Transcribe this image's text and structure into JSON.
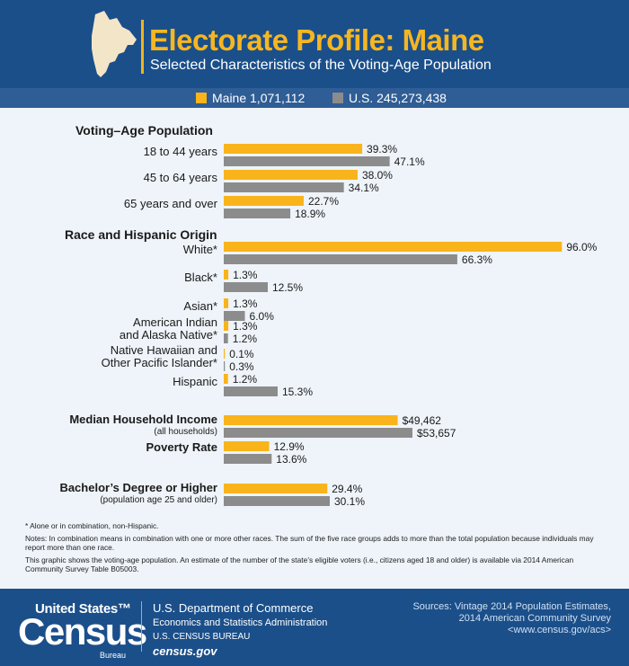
{
  "header": {
    "title": "Electorate Profile: Maine",
    "subtitle": "Selected Characteristics of the Voting-Age Population"
  },
  "legend": [
    {
      "label": "Maine 1,071,112",
      "color": "#f9b41b"
    },
    {
      "label": "U.S. 245,273,438",
      "color": "#8c8c8c"
    }
  ],
  "chart_data": {
    "type": "bar",
    "orientation": "horizontal",
    "series": [
      {
        "name": "Maine 1,071,112",
        "color": "#f9b41b"
      },
      {
        "name": "U.S. 245,273,438",
        "color": "#8c8c8c"
      }
    ],
    "sections": [
      {
        "title": "Voting–Age Population",
        "rows": [
          {
            "label": "18 to 44 years",
            "values": [
              39.3,
              47.1
            ],
            "labels": [
              "39.3%",
              "47.1%"
            ]
          },
          {
            "label": "45 to 64 years",
            "values": [
              38.0,
              34.1
            ],
            "labels": [
              "38.0%",
              "34.1%"
            ]
          },
          {
            "label": "65 years and over",
            "values": [
              22.7,
              18.9
            ],
            "labels": [
              "22.7%",
              "18.9%"
            ]
          }
        ]
      },
      {
        "title": "Race and Hispanic Origin",
        "rows": [
          {
            "label": "White*",
            "values": [
              96.0,
              66.3
            ],
            "labels": [
              "96.0%",
              "66.3%"
            ]
          },
          {
            "label": "Black*",
            "values": [
              1.3,
              12.5
            ],
            "labels": [
              "1.3%",
              "12.5%"
            ]
          },
          {
            "label": "Asian*",
            "values": [
              1.3,
              6.0
            ],
            "labels": [
              "1.3%",
              "6.0%"
            ]
          },
          {
            "label": [
              "American Indian",
              "and Alaska Native*"
            ],
            "values": [
              1.3,
              1.2
            ],
            "labels": [
              "1.3%",
              "1.2%"
            ]
          },
          {
            "label": [
              "Native Hawaiian and",
              "Other Pacific Islander*"
            ],
            "values": [
              0.1,
              0.3
            ],
            "labels": [
              "0.1%",
              "0.3%"
            ]
          },
          {
            "label": "Hispanic",
            "values": [
              1.2,
              15.3
            ],
            "labels": [
              "1.2%",
              "15.3%"
            ]
          }
        ]
      },
      {
        "title": "",
        "rows": [
          {
            "label": "Median Household Income",
            "sublabel": "(all households)",
            "bold": true,
            "values": [
              49462,
              53657
            ],
            "labels": [
              "$49,462",
              "$53,657"
            ]
          },
          {
            "label": "Poverty Rate",
            "bold": true,
            "values": [
              12.9,
              13.6
            ],
            "labels": [
              "12.9%",
              "13.6%"
            ]
          },
          {
            "label": "Bachelor’s Degree or Higher",
            "sublabel": "(population age 25 and older)",
            "bold": true,
            "values": [
              29.4,
              30.1
            ],
            "labels": [
              "29.4%",
              "30.1%"
            ]
          }
        ]
      }
    ]
  },
  "notes": {
    "footnote": "* Alone or in combination, non-Hispanic.",
    "note1": "Notes: In combination means in combination with one or more other races. The sum of the five race groups adds to more than the total population because individuals may report more than one race.",
    "note2": "This graphic shows the voting-age population. An estimate of the number of the state’s eligible voters (i.e., citizens aged 18 and older) is available via 2014 American Community Survey Table B05003."
  },
  "footer": {
    "logo_top": "United States™",
    "logo_main": "Census",
    "logo_bottom": "Bureau",
    "dept": "U.S. Department of Commerce",
    "esa": "Economics and Statistics Administration",
    "bureau": "U.S. CENSUS BUREAU",
    "website": "census.gov",
    "sources": [
      "Sources: Vintage 2014 Population Estimates,",
      "2014 American Community Survey",
      "<www.census.gov/acs>"
    ]
  }
}
